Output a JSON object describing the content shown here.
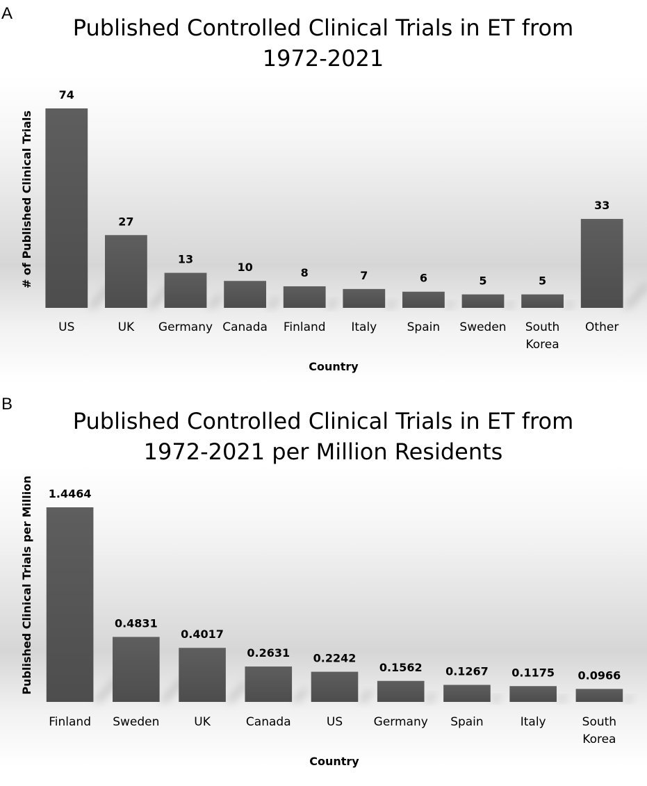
{
  "panels": {
    "a": {
      "letter": "A"
    },
    "b": {
      "letter": "B"
    }
  },
  "chart_data": [
    {
      "type": "bar",
      "title": [
        "Published Controlled Clinical Trials in ET from",
        "1972-2021"
      ],
      "xlabel": "Country",
      "ylabel": "# of Published Clinical Trials",
      "categories": [
        "US",
        "UK",
        "Germany",
        "Canada",
        "Finland",
        "Italy",
        "Spain",
        "Sweden",
        "South Korea",
        "Other"
      ],
      "category_lines": [
        [
          "US"
        ],
        [
          "UK"
        ],
        [
          "Germany"
        ],
        [
          "Canada"
        ],
        [
          "Finland"
        ],
        [
          "Italy"
        ],
        [
          "Spain"
        ],
        [
          "Sweden"
        ],
        [
          "South",
          "Korea"
        ],
        [
          "Other"
        ]
      ],
      "values": [
        74,
        27,
        13,
        10,
        8,
        7,
        6,
        5,
        5,
        33
      ],
      "value_labels": [
        "74",
        "27",
        "13",
        "10",
        "8",
        "7",
        "6",
        "5",
        "5",
        "33"
      ],
      "ylim": [
        0,
        74
      ],
      "grid": false,
      "legend": "none",
      "bar_color": "#595959"
    },
    {
      "type": "bar",
      "title": [
        "Published Controlled Clinical Trials in ET from",
        "1972-2021 per Million Residents"
      ],
      "xlabel": "Country",
      "ylabel": "Published Clinical Trials per Million",
      "categories": [
        "Finland",
        "Sweden",
        "UK",
        "Canada",
        "US",
        "Germany",
        "Spain",
        "Italy",
        "South Korea"
      ],
      "category_lines": [
        [
          "Finland"
        ],
        [
          "Sweden"
        ],
        [
          "UK"
        ],
        [
          "Canada"
        ],
        [
          "US"
        ],
        [
          "Germany"
        ],
        [
          "Spain"
        ],
        [
          "Italy"
        ],
        [
          "South",
          "Korea"
        ]
      ],
      "values": [
        1.4464,
        0.4831,
        0.4017,
        0.2631,
        0.2242,
        0.1562,
        0.1267,
        0.1175,
        0.0966
      ],
      "value_labels": [
        "1.4464",
        "0.4831",
        "0.4017",
        "0.2631",
        "0.2242",
        "0.1562",
        "0.1267",
        "0.1175",
        "0.0966"
      ],
      "ylim": [
        0,
        1.4464
      ],
      "grid": false,
      "legend": "none",
      "bar_color": "#595959"
    }
  ]
}
